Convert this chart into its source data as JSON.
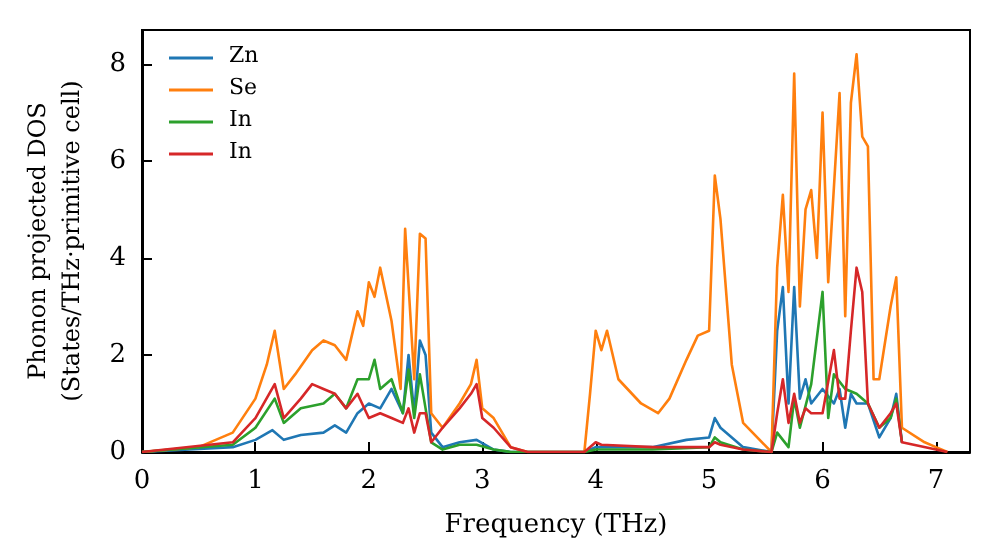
{
  "chart_data": {
    "type": "line",
    "xlabel": "Frequency (THz)",
    "ylabel": "Phonon projected DOS\n(States/THz·primitive cell)",
    "xlim": [
      0,
      7.3
    ],
    "ylim": [
      0,
      8.7
    ],
    "xticks": [
      0,
      1,
      2,
      3,
      4,
      5,
      6,
      7
    ],
    "yticks": [
      0,
      2,
      4,
      6,
      8
    ],
    "legend": "top left",
    "grid": false,
    "marker": "none",
    "line_style": "solid",
    "series": [
      {
        "name": "Zn",
        "color": "#1f77b4",
        "x": [
          0,
          0.8,
          1.0,
          1.15,
          1.25,
          1.4,
          1.6,
          1.7,
          1.8,
          1.9,
          2.0,
          2.1,
          2.2,
          2.3,
          2.35,
          2.4,
          2.45,
          2.5,
          2.55,
          2.65,
          2.8,
          2.95,
          3.1,
          3.25,
          3.9,
          4.0,
          4.5,
          4.8,
          5.0,
          5.05,
          5.1,
          5.3,
          5.55,
          5.6,
          5.65,
          5.7,
          5.75,
          5.8,
          5.85,
          5.9,
          6.0,
          6.1,
          6.15,
          6.2,
          6.25,
          6.3,
          6.4,
          6.5,
          6.6,
          6.65,
          6.7
        ],
        "values": [
          0,
          0.1,
          0.25,
          0.45,
          0.25,
          0.35,
          0.4,
          0.55,
          0.4,
          0.8,
          1.0,
          0.9,
          1.3,
          0.8,
          2.0,
          0.8,
          2.3,
          2.0,
          0.4,
          0.1,
          0.2,
          0.25,
          0.05,
          0,
          0,
          0.1,
          0.1,
          0.25,
          0.3,
          0.7,
          0.5,
          0.1,
          0,
          2.5,
          3.4,
          1.0,
          3.4,
          1.1,
          1.5,
          1.0,
          1.3,
          1.0,
          1.3,
          0.5,
          1.2,
          1.0,
          1.0,
          0.3,
          0.7,
          1.2,
          0.2
        ]
      },
      {
        "name": "Se",
        "color": "#ff7f0e",
        "x": [
          0,
          0.5,
          0.8,
          1.0,
          1.1,
          1.17,
          1.25,
          1.35,
          1.5,
          1.6,
          1.7,
          1.8,
          1.9,
          1.95,
          2.0,
          2.05,
          2.1,
          2.2,
          2.28,
          2.32,
          2.4,
          2.45,
          2.5,
          2.55,
          2.65,
          2.8,
          2.9,
          2.95,
          3.0,
          3.1,
          3.25,
          3.4,
          3.9,
          3.95,
          4.0,
          4.05,
          4.1,
          4.2,
          4.4,
          4.55,
          4.65,
          4.8,
          4.9,
          5.0,
          5.05,
          5.1,
          5.2,
          5.3,
          5.55,
          5.6,
          5.65,
          5.7,
          5.75,
          5.8,
          5.85,
          5.9,
          5.95,
          6.0,
          6.05,
          6.15,
          6.2,
          6.25,
          6.3,
          6.35,
          6.4,
          6.45,
          6.5,
          6.6,
          6.65,
          6.7,
          6.9,
          7.0,
          7.1
        ],
        "values": [
          0,
          0.1,
          0.4,
          1.1,
          1.8,
          2.5,
          1.3,
          1.6,
          2.1,
          2.3,
          2.2,
          1.9,
          2.9,
          2.6,
          3.5,
          3.2,
          3.8,
          2.7,
          1.3,
          4.6,
          1.5,
          4.5,
          4.4,
          0.8,
          0.5,
          1.0,
          1.4,
          1.9,
          0.9,
          0.7,
          0.1,
          0,
          0,
          1.2,
          2.5,
          2.1,
          2.5,
          1.5,
          1.0,
          0.8,
          1.1,
          1.9,
          2.4,
          2.5,
          5.7,
          4.8,
          1.8,
          0.6,
          0,
          3.8,
          5.3,
          3.3,
          7.8,
          3.0,
          5.0,
          5.4,
          4.0,
          7.0,
          3.5,
          7.4,
          2.8,
          7.2,
          8.2,
          6.5,
          6.3,
          1.5,
          1.5,
          3.0,
          3.6,
          0.5,
          0.2,
          0.1,
          0
        ]
      },
      {
        "name": "In",
        "color": "#2ca02c",
        "x": [
          0,
          0.8,
          1.0,
          1.17,
          1.25,
          1.4,
          1.6,
          1.7,
          1.8,
          1.9,
          2.0,
          2.05,
          2.1,
          2.2,
          2.3,
          2.35,
          2.4,
          2.45,
          2.5,
          2.55,
          2.65,
          2.8,
          2.95,
          3.1,
          3.25,
          3.9,
          4.0,
          4.5,
          5.0,
          5.05,
          5.1,
          5.3,
          5.55,
          5.6,
          5.7,
          5.75,
          5.8,
          5.9,
          6.0,
          6.05,
          6.1,
          6.2,
          6.3,
          6.4,
          6.5,
          6.6,
          6.65,
          6.7
        ],
        "values": [
          0,
          0.15,
          0.5,
          1.1,
          0.6,
          0.9,
          1.0,
          1.2,
          0.9,
          1.5,
          1.5,
          1.9,
          1.3,
          1.5,
          0.8,
          1.7,
          0.7,
          1.6,
          0.9,
          0.2,
          0.05,
          0.15,
          0.15,
          0.05,
          0,
          0,
          0.05,
          0.05,
          0.1,
          0.3,
          0.2,
          0.05,
          0,
          0.4,
          0.1,
          1.1,
          0.5,
          1.4,
          3.3,
          0.7,
          1.6,
          1.3,
          1.2,
          1.0,
          0.5,
          0.7,
          1.1,
          0.2
        ]
      },
      {
        "name": "In",
        "color": "#d62728",
        "x": [
          0,
          0.8,
          1.0,
          1.17,
          1.25,
          1.4,
          1.5,
          1.6,
          1.7,
          1.8,
          1.9,
          2.0,
          2.1,
          2.2,
          2.3,
          2.35,
          2.4,
          2.45,
          2.5,
          2.55,
          2.65,
          2.8,
          2.9,
          2.95,
          3.0,
          3.1,
          3.25,
          3.4,
          3.9,
          4.0,
          4.05,
          4.5,
          5.0,
          5.05,
          5.1,
          5.3,
          5.55,
          5.6,
          5.65,
          5.7,
          5.75,
          5.8,
          5.85,
          5.9,
          6.0,
          6.1,
          6.15,
          6.2,
          6.25,
          6.3,
          6.35,
          6.4,
          6.5,
          6.6,
          6.65,
          6.7,
          7.0,
          7.1
        ],
        "values": [
          0,
          0.2,
          0.7,
          1.4,
          0.7,
          1.1,
          1.4,
          1.3,
          1.2,
          0.9,
          1.2,
          0.7,
          0.8,
          0.7,
          0.6,
          0.9,
          0.4,
          0.8,
          0.8,
          0.2,
          0.5,
          0.9,
          1.2,
          1.4,
          0.7,
          0.5,
          0.1,
          0,
          0,
          0.2,
          0.15,
          0.1,
          0.1,
          0.2,
          0.15,
          0.05,
          0,
          0.8,
          1.5,
          0.6,
          1.2,
          0.6,
          0.9,
          0.8,
          0.8,
          2.1,
          1.1,
          1.1,
          2.5,
          3.8,
          3.3,
          1.0,
          0.5,
          0.8,
          1.0,
          0.2,
          0.05,
          0
        ]
      }
    ]
  }
}
